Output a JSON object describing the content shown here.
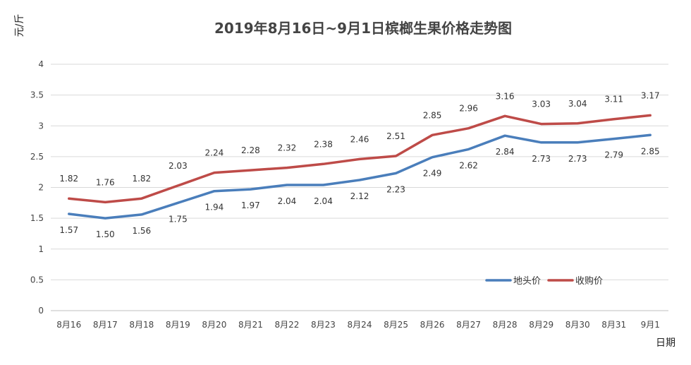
{
  "chart_data": {
    "type": "line",
    "title": "2019年8月16日~9月1日槟榔生果价格走势图",
    "ylabel": "元/斤",
    "xlabel": "日期",
    "ylim": [
      0,
      4
    ],
    "yticks": [
      "0",
      "0.5",
      "1",
      "1.5",
      "2",
      "2.5",
      "3",
      "3.5",
      "4"
    ],
    "grid": true,
    "legend_position": "bottom-right",
    "categories": [
      "8月16",
      "8月17",
      "8月18",
      "8月19",
      "8月20",
      "8月21",
      "8月22",
      "8月23",
      "8月24",
      "8月25",
      "8月26",
      "8月27",
      "8月28",
      "8月29",
      "8月30",
      "8月31",
      "9月1"
    ],
    "series": [
      {
        "name": "地头价",
        "color": "#4a7ebb",
        "values": [
          1.57,
          1.5,
          1.56,
          1.75,
          1.94,
          1.97,
          2.04,
          2.04,
          2.12,
          2.23,
          2.49,
          2.62,
          2.84,
          2.73,
          2.73,
          2.79,
          2.85
        ],
        "labels": [
          "1.57",
          "1.50",
          "1.56",
          "1.75",
          "1.94",
          "1.97",
          "2.04",
          "2.04",
          "2.12",
          "2.23",
          "2.49",
          "2.62",
          "2.84",
          "2.73",
          "2.73",
          "2.79",
          "2.85"
        ]
      },
      {
        "name": "收购价",
        "color": "#be4b48",
        "values": [
          1.82,
          1.76,
          1.82,
          2.03,
          2.24,
          2.28,
          2.32,
          2.38,
          2.46,
          2.51,
          2.85,
          2.96,
          3.16,
          3.03,
          3.04,
          3.11,
          3.17
        ],
        "labels": [
          "1.82",
          "1.76",
          "1.82",
          "2.03",
          "2.24",
          "2.28",
          "2.32",
          "2.38",
          "2.46",
          "2.51",
          "2.85",
          "2.96",
          "3.16",
          "3.03",
          "3.04",
          "3.11",
          "3.17"
        ]
      }
    ]
  }
}
